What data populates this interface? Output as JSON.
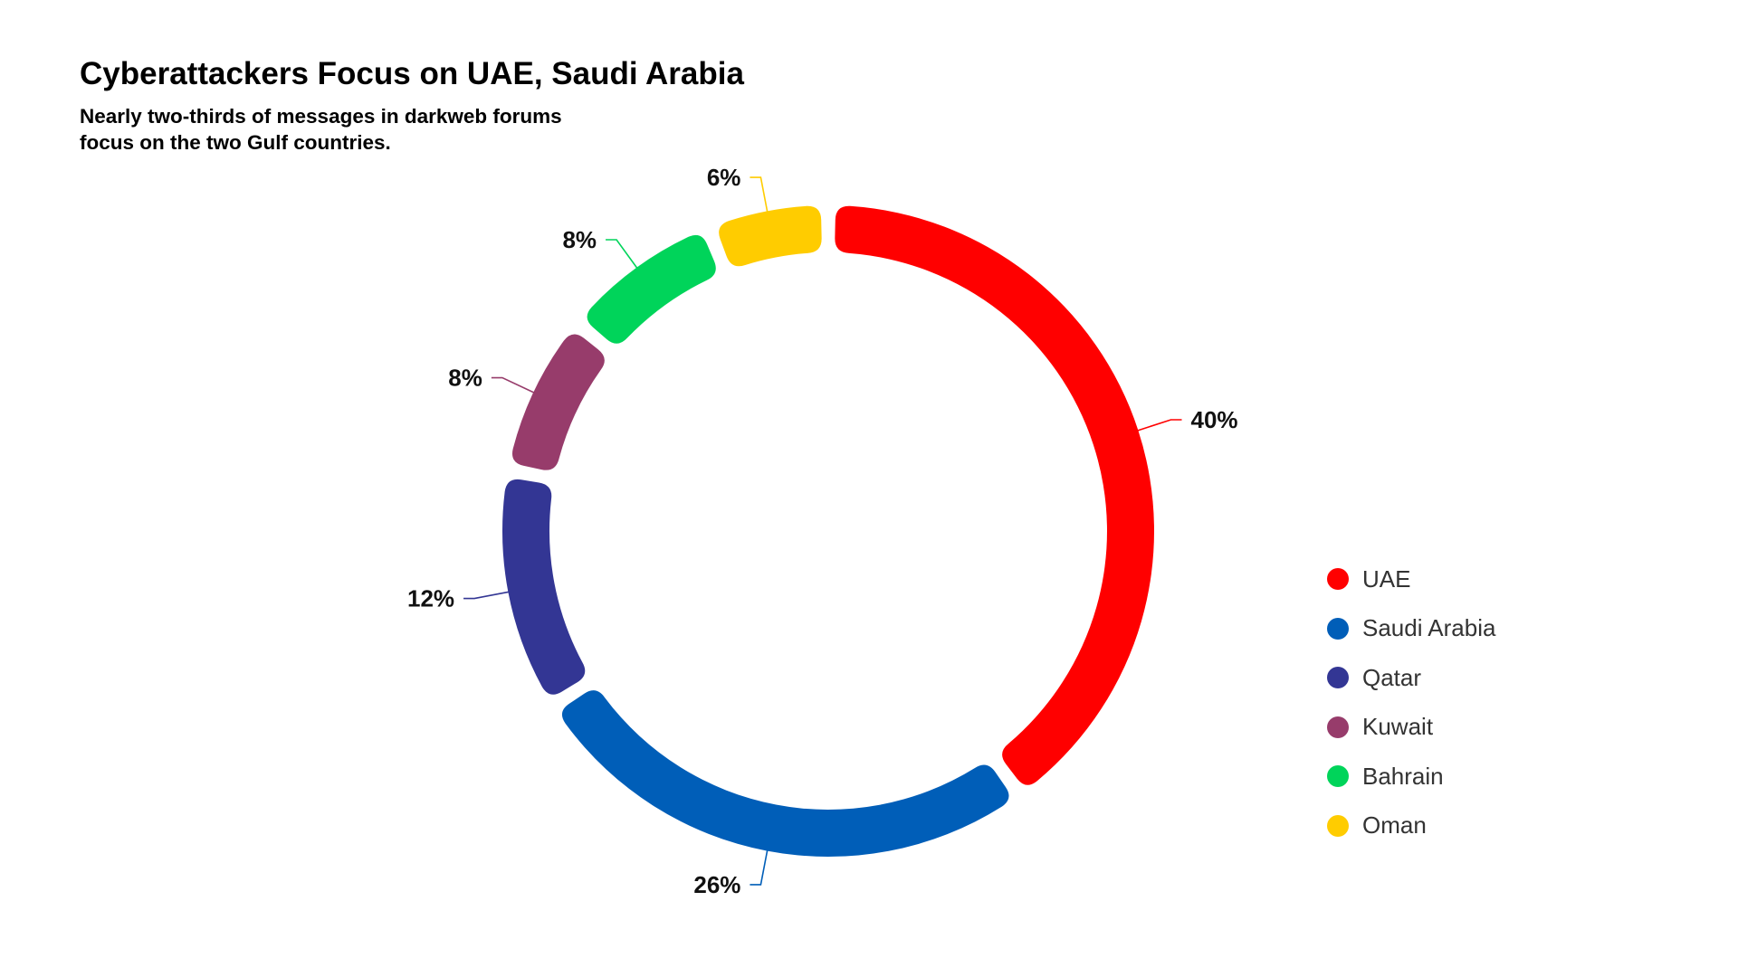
{
  "chart": {
    "title": "Cyberattackers Focus on UAE, Saudi Arabia",
    "subtitle_line1": "Nearly two-thirds of messages in darkweb forums",
    "subtitle_line2": "focus on the two Gulf countries."
  },
  "chart_data": {
    "type": "pie",
    "variant": "donut",
    "title": "Cyberattackers Focus on UAE, Saudi Arabia",
    "subtitle": "Nearly two-thirds of messages in darkweb forums focus on the two Gulf countries.",
    "categories": [
      "UAE",
      "Saudi Arabia",
      "Qatar",
      "Kuwait",
      "Bahrain",
      "Oman"
    ],
    "values": [
      40,
      26,
      12,
      8,
      8,
      6
    ],
    "value_labels": [
      "40%",
      "26%",
      "12%",
      "8%",
      "8%",
      "6%"
    ],
    "colors": [
      "#ff0000",
      "#005eb8",
      "#333694",
      "#973c6b",
      "#00d45a",
      "#ffcc00"
    ],
    "legend_position": "right",
    "grid": false
  },
  "legend": {
    "items": [
      {
        "label": "UAE",
        "color": "#ff0000"
      },
      {
        "label": "Saudi Arabia",
        "color": "#005eb8"
      },
      {
        "label": "Qatar",
        "color": "#333694"
      },
      {
        "label": "Kuwait",
        "color": "#973c6b"
      },
      {
        "label": "Bahrain",
        "color": "#00d45a"
      },
      {
        "label": "Oman",
        "color": "#ffcc00"
      }
    ]
  }
}
